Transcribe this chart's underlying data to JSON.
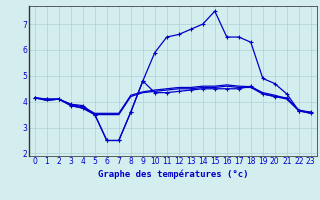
{
  "title": "Graphe des températures (°c)",
  "bg_color": "#d4eef0",
  "grid_color": "#b0d0d4",
  "line_color": "#0000cc",
  "xlim": [
    -0.5,
    23.5
  ],
  "ylim": [
    1.9,
    7.7
  ],
  "yticks": [
    2,
    3,
    4,
    5,
    6,
    7
  ],
  "xticks": [
    0,
    1,
    2,
    3,
    4,
    5,
    6,
    7,
    8,
    9,
    10,
    11,
    12,
    13,
    14,
    15,
    16,
    17,
    18,
    19,
    20,
    21,
    22,
    23
  ],
  "s1_x": [
    0,
    1,
    2,
    3,
    4,
    5,
    6,
    7,
    8,
    9,
    10,
    11,
    12,
    13,
    14,
    15,
    16,
    17,
    18,
    19,
    20,
    21,
    22,
    23
  ],
  "s1_y": [
    4.15,
    4.05,
    4.1,
    3.85,
    3.75,
    3.5,
    3.5,
    3.5,
    4.2,
    4.35,
    4.4,
    4.45,
    4.5,
    4.5,
    4.55,
    4.55,
    4.6,
    4.55,
    4.55,
    4.3,
    4.2,
    4.1,
    3.65,
    3.55
  ],
  "s2_x": [
    0,
    1,
    2,
    3,
    4,
    5,
    6,
    7,
    8,
    9,
    10,
    11,
    12,
    13,
    14,
    15,
    16,
    17,
    18,
    19,
    20,
    21,
    22,
    23
  ],
  "s2_y": [
    4.15,
    4.05,
    4.1,
    3.9,
    3.8,
    3.55,
    3.55,
    3.55,
    4.25,
    4.38,
    4.45,
    4.5,
    4.55,
    4.55,
    4.6,
    4.6,
    4.65,
    4.6,
    4.58,
    4.35,
    4.25,
    4.12,
    3.68,
    3.58
  ],
  "s3_x": [
    0,
    1,
    2,
    3,
    4,
    5,
    6,
    7,
    8,
    9,
    10,
    11,
    12,
    13,
    14,
    15,
    16,
    17,
    18,
    19,
    20,
    21,
    22,
    23
  ],
  "s3_y": [
    4.15,
    4.1,
    4.1,
    3.85,
    3.75,
    3.5,
    2.5,
    2.5,
    3.6,
    4.8,
    4.35,
    4.35,
    4.4,
    4.45,
    4.5,
    4.5,
    4.5,
    4.5,
    4.6,
    4.3,
    4.2,
    4.15,
    3.65,
    3.6
  ],
  "s4_x": [
    0,
    1,
    2,
    3,
    4,
    5,
    6,
    7,
    8,
    9,
    10,
    11,
    12,
    13,
    14,
    15,
    16,
    17,
    18,
    19,
    20,
    21,
    22,
    23
  ],
  "s4_y": [
    4.15,
    4.1,
    4.1,
    3.9,
    3.85,
    3.5,
    2.5,
    2.5,
    3.6,
    4.8,
    5.9,
    6.5,
    6.6,
    6.8,
    7.0,
    7.5,
    6.5,
    6.5,
    6.3,
    4.9,
    4.7,
    4.3,
    3.65,
    3.55
  ]
}
